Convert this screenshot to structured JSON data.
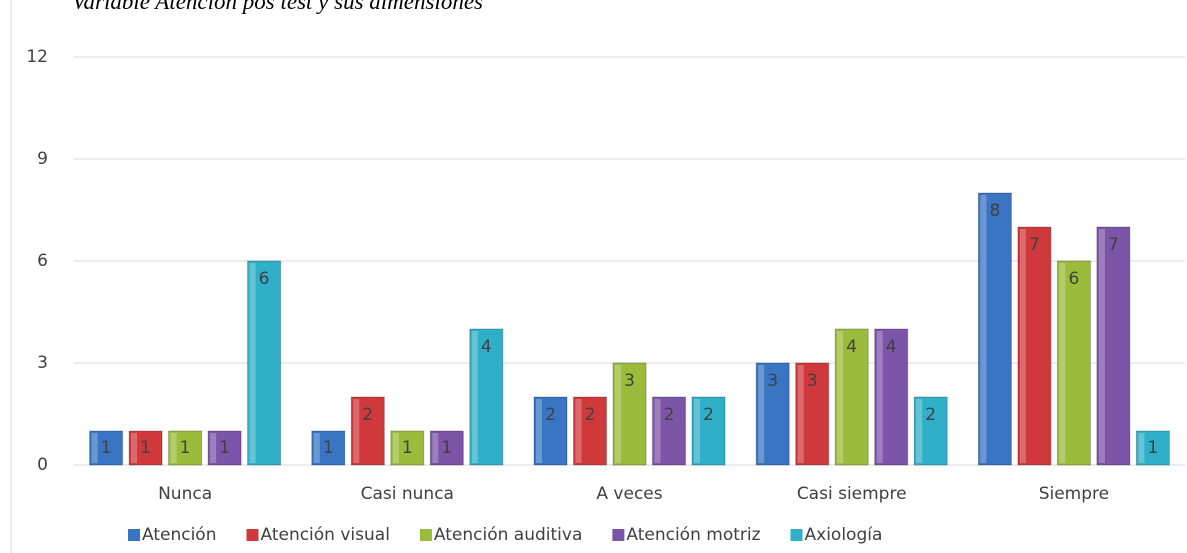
{
  "chart_data": {
    "type": "bar",
    "title": "Variable Atención pos test y sus dimensiones",
    "categories": [
      "Nunca",
      "Casi nunca",
      "A veces",
      "Casi siempre",
      "Siempre"
    ],
    "series": [
      {
        "name": "Atención",
        "color": "#3a75c4",
        "values": [
          1,
          1,
          2,
          3,
          8
        ]
      },
      {
        "name": "Atención visual",
        "color": "#d0393b",
        "values": [
          1,
          2,
          2,
          3,
          7
        ]
      },
      {
        "name": "Atención auditiva",
        "color": "#9bbb3b",
        "values": [
          1,
          1,
          3,
          4,
          6
        ]
      },
      {
        "name": "Atención motriz",
        "color": "#7d55a8",
        "values": [
          1,
          1,
          2,
          4,
          7
        ]
      },
      {
        "name": "Axiología",
        "color": "#30b0c8",
        "values": [
          6,
          4,
          2,
          2,
          1
        ]
      }
    ],
    "ylim": [
      0,
      12
    ],
    "yticks": [
      0,
      3,
      6,
      9,
      12
    ],
    "grid": true,
    "legend": "bottom"
  }
}
